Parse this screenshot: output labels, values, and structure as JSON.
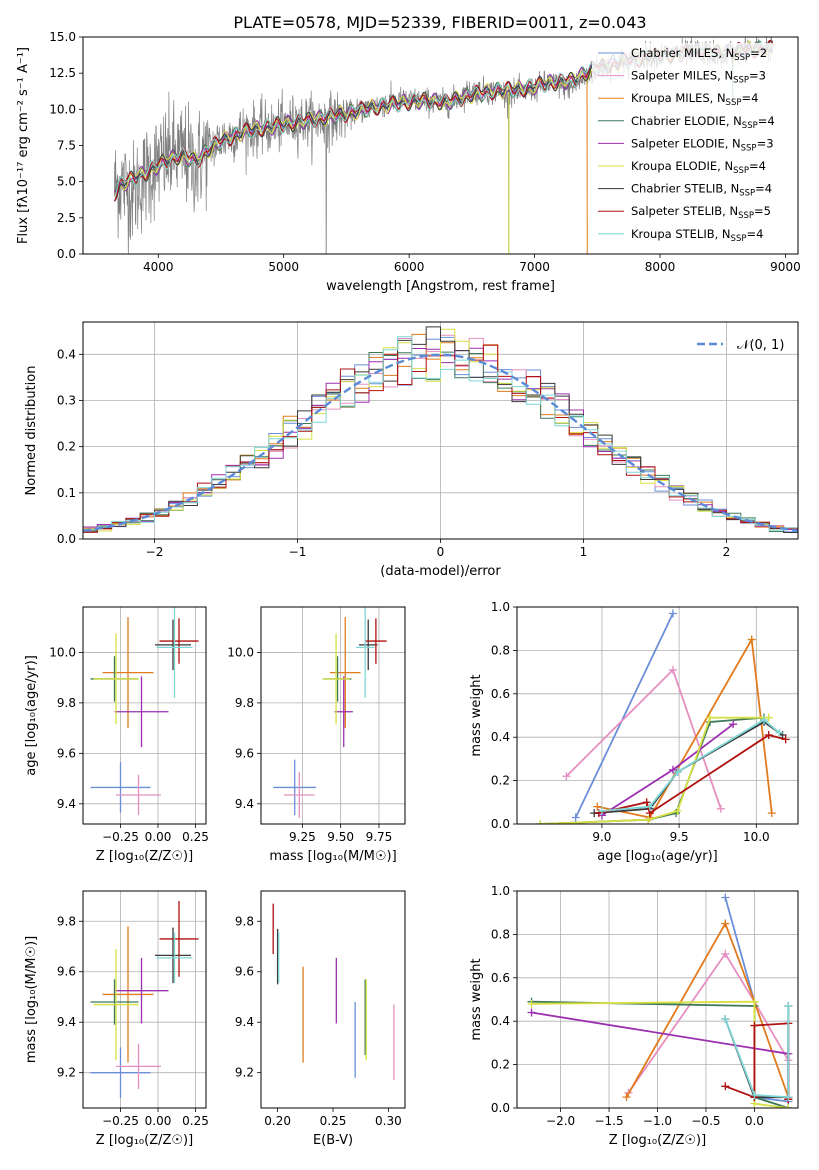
{
  "figure_title": "PLATE=0578, MJD=52339, FIBERID=0011, z=0.043",
  "colors": {
    "Chabrier MILES": "#6a8fd8",
    "Salpeter MILES": "#e58fc0",
    "Kroupa MILES": "#e07b1e",
    "Chabrier ELODIE": "#3e7a5a",
    "Salpeter ELODIE": "#9b2fb0",
    "Kroupa ELODIE": "#d7e043",
    "Chabrier STELIB": "#3a3a3a",
    "Salpeter STELIB": "#b01010",
    "Kroupa STELIB": "#7fd6d6",
    "data": "#808080",
    "normal": "#5b8bd6"
  },
  "chart_data": [
    {
      "id": "spectrum",
      "type": "line",
      "xlabel": "wavelength [Angstrom, rest frame]",
      "ylabel": "Flux [fλ10⁻¹⁷ erg cm⁻² s⁻¹ A⁻¹]",
      "xlim": [
        3400,
        9100
      ],
      "ylim": [
        0,
        15
      ],
      "xticks": [
        4000,
        5000,
        6000,
        7000,
        8000,
        9000
      ],
      "yticks": [
        0.0,
        2.5,
        5.0,
        7.5,
        10.0,
        12.5,
        15.0
      ],
      "grid": false,
      "legend_position": "right",
      "legend": [
        {
          "label": "Chabrier MILES, N",
          "sub": "SSP",
          "eq": "=2",
          "color_key": "Chabrier MILES"
        },
        {
          "label": "Salpeter MILES, N",
          "sub": "SSP",
          "eq": "=3",
          "color_key": "Salpeter MILES"
        },
        {
          "label": "Kroupa MILES, N",
          "sub": "SSP",
          "eq": "=4",
          "color_key": "Kroupa MILES"
        },
        {
          "label": "Chabrier ELODIE, N",
          "sub": "SSP",
          "eq": "=4",
          "color_key": "Chabrier ELODIE"
        },
        {
          "label": "Salpeter ELODIE, N",
          "sub": "SSP",
          "eq": "=3",
          "color_key": "Salpeter ELODIE"
        },
        {
          "label": "Kroupa ELODIE, N",
          "sub": "SSP",
          "eq": "=4",
          "color_key": "Kroupa ELODIE"
        },
        {
          "label": "Chabrier STELIB, N",
          "sub": "SSP",
          "eq": "=4",
          "color_key": "Chabrier STELIB"
        },
        {
          "label": "Salpeter STELIB, N",
          "sub": "SSP",
          "eq": "=5",
          "color_key": "Salpeter STELIB"
        },
        {
          "label": "Kroupa STELIB, N",
          "sub": "SSP",
          "eq": "=4",
          "color_key": "Kroupa STELIB"
        }
      ],
      "data_spectrum": {
        "x": [
          3650,
          3700,
          3800,
          3900,
          4000,
          4100,
          4200,
          4300,
          4400,
          4500,
          4700,
          4900,
          5100,
          5300,
          5500,
          5700,
          5900,
          6100,
          6300,
          6500,
          6700,
          6900,
          7100,
          7300,
          7500,
          7700,
          7900,
          8100,
          8300,
          8500,
          8700,
          8900
        ],
        "y": [
          4.6,
          4.9,
          4.2,
          5.4,
          6.3,
          6.8,
          6.9,
          6.2,
          7.3,
          7.9,
          8.6,
          8.7,
          9.2,
          9.2,
          9.6,
          10.2,
          10.6,
          10.6,
          10.4,
          11.3,
          11.2,
          11.1,
          11.8,
          11.5,
          12.8,
          13.3,
          13.7,
          13.8,
          14.0,
          13.7,
          14.2,
          14.3
        ]
      },
      "model_spectrum": {
        "x": [
          3650,
          3700,
          3800,
          3900,
          4000,
          4100,
          4200,
          4300,
          4400,
          4500,
          4700,
          4900,
          5100,
          5300,
          5500,
          5700,
          5900,
          6100,
          6300,
          6500,
          6700,
          6900,
          7100,
          7300,
          7500,
          7700,
          7900,
          8100,
          8300,
          8500,
          8700,
          8900
        ],
        "y": [
          4.2,
          4.8,
          5.2,
          5.6,
          6.1,
          6.6,
          6.8,
          6.4,
          7.2,
          7.8,
          8.5,
          8.8,
          9.1,
          9.4,
          9.7,
          10.1,
          10.4,
          10.6,
          10.5,
          11.0,
          11.3,
          11.4,
          11.8,
          12.0,
          12.9,
          13.3,
          13.6,
          13.8,
          14.0,
          13.9,
          14.1,
          14.2
        ]
      }
    },
    {
      "id": "residuals",
      "type": "line",
      "xlabel": "(data-model)/error",
      "ylabel": "Normed distribution",
      "xlim": [
        -2.5,
        2.5
      ],
      "ylim": [
        0,
        0.47
      ],
      "xticks": [
        -2,
        -1,
        0,
        1,
        2
      ],
      "yticks": [
        0.0,
        0.1,
        0.2,
        0.3,
        0.4
      ],
      "grid": true,
      "legend_position": "top-right",
      "legend": [
        {
          "label": "𝒩(0, 1)"
        }
      ],
      "histogram_bin_width": 0.1,
      "reference_curve": "standard normal N(0,1)"
    },
    {
      "id": "age_vs_Z",
      "type": "scatter",
      "xlabel": "Z [log₁₀(Z/Z☉)]",
      "ylabel": "age  [log₁₀(age/yr)]",
      "xlim": [
        -0.5,
        0.32
      ],
      "ylim": [
        9.32,
        10.18
      ],
      "xticks": [
        -0.25,
        0.0,
        0.25
      ],
      "yticks": [
        9.4,
        9.6,
        9.8,
        10.0
      ],
      "grid": true,
      "points": [
        {
          "model": "Chabrier MILES",
          "x": -0.25,
          "y": 9.465,
          "xerr": 0.2,
          "yerr": 0.1
        },
        {
          "model": "Salpeter MILES",
          "x": -0.13,
          "y": 9.435,
          "xerr": 0.15,
          "yerr": 0.08
        },
        {
          "model": "Kroupa MILES",
          "x": -0.2,
          "y": 9.92,
          "xerr": 0.17,
          "yerr": 0.22
        },
        {
          "model": "Chabrier ELODIE",
          "x": -0.29,
          "y": 9.895,
          "xerr": 0.16,
          "yerr": 0.09
        },
        {
          "model": "Salpeter ELODIE",
          "x": -0.11,
          "y": 9.765,
          "xerr": 0.18,
          "yerr": 0.14
        },
        {
          "model": "Kroupa ELODIE",
          "x": -0.28,
          "y": 9.895,
          "xerr": 0.15,
          "yerr": 0.18
        },
        {
          "model": "Chabrier STELIB",
          "x": 0.1,
          "y": 10.03,
          "xerr": 0.12,
          "yerr": 0.1
        },
        {
          "model": "Salpeter STELIB",
          "x": 0.14,
          "y": 10.045,
          "xerr": 0.13,
          "yerr": 0.09
        },
        {
          "model": "Kroupa STELIB",
          "x": 0.11,
          "y": 10.02,
          "xerr": 0.12,
          "yerr": 0.2
        }
      ]
    },
    {
      "id": "age_vs_mass",
      "type": "scatter",
      "xlabel": "mass [log₁₀(M/M☉)]",
      "ylabel": "",
      "xlim": [
        8.98,
        9.92
      ],
      "ylim": [
        9.32,
        10.18
      ],
      "xticks": [
        9.25,
        9.5,
        9.75
      ],
      "yticks": [
        9.4,
        9.6,
        9.8,
        10.0
      ],
      "grid": true,
      "points": [
        {
          "model": "Chabrier MILES",
          "x": 9.2,
          "y": 9.465,
          "xerr": 0.14,
          "yerr": 0.11
        },
        {
          "model": "Salpeter MILES",
          "x": 9.23,
          "y": 9.435,
          "xerr": 0.1,
          "yerr": 0.09
        },
        {
          "model": "Kroupa MILES",
          "x": 9.53,
          "y": 9.92,
          "xerr": 0.1,
          "yerr": 0.22
        },
        {
          "model": "Chabrier ELODIE",
          "x": 9.48,
          "y": 9.895,
          "xerr": 0.09,
          "yerr": 0.09
        },
        {
          "model": "Salpeter ELODIE",
          "x": 9.52,
          "y": 9.765,
          "xerr": 0.06,
          "yerr": 0.14
        },
        {
          "model": "Kroupa ELODIE",
          "x": 9.47,
          "y": 9.895,
          "xerr": 0.09,
          "yerr": 0.18
        },
        {
          "model": "Chabrier STELIB",
          "x": 9.68,
          "y": 10.03,
          "xerr": 0.06,
          "yerr": 0.1
        },
        {
          "model": "Salpeter STELIB",
          "x": 9.73,
          "y": 10.045,
          "xerr": 0.07,
          "yerr": 0.09
        },
        {
          "model": "Kroupa STELIB",
          "x": 9.66,
          "y": 10.02,
          "xerr": 0.06,
          "yerr": 0.2
        }
      ]
    },
    {
      "id": "weight_vs_age",
      "type": "line",
      "xlabel": "age  [log₁₀(age/yr)]",
      "ylabel": "mass weight",
      "xlim": [
        8.45,
        10.27
      ],
      "ylim": [
        0,
        1.0
      ],
      "xticks": [
        9.0,
        9.5,
        10.0
      ],
      "yticks": [
        0.0,
        0.2,
        0.4,
        0.6,
        0.8,
        1.0
      ],
      "grid": true,
      "series": [
        {
          "model": "Chabrier MILES",
          "x": [
            8.83,
            9.46
          ],
          "y": [
            0.03,
            0.97
          ]
        },
        {
          "model": "Salpeter MILES",
          "x": [
            8.77,
            9.46,
            9.77
          ],
          "y": [
            0.22,
            0.71,
            0.07
          ]
        },
        {
          "model": "Kroupa MILES",
          "x": [
            8.97,
            9.31,
            9.97,
            10.1
          ],
          "y": [
            0.08,
            0.03,
            0.85,
            0.05
          ]
        },
        {
          "model": "Chabrier ELODIE",
          "x": [
            8.6,
            9.3,
            9.48,
            9.7,
            10.05
          ],
          "y": [
            0.0,
            0.02,
            0.05,
            0.47,
            0.49
          ]
        },
        {
          "model": "Salpeter ELODIE",
          "x": [
            9.0,
            9.46,
            9.85
          ],
          "y": [
            0.04,
            0.25,
            0.46
          ]
        },
        {
          "model": "Kroupa ELODIE",
          "x": [
            8.6,
            9.3,
            9.49,
            9.7,
            10.08
          ],
          "y": [
            0.0,
            0.02,
            0.06,
            0.49,
            0.49
          ]
        },
        {
          "model": "Chabrier STELIB",
          "x": [
            8.95,
            9.31,
            9.49,
            10.05,
            10.17
          ],
          "y": [
            0.05,
            0.07,
            0.24,
            0.47,
            0.41
          ]
        },
        {
          "model": "Salpeter STELIB",
          "x": [
            8.98,
            9.29,
            9.31,
            10.08,
            10.19
          ],
          "y": [
            0.05,
            0.1,
            0.05,
            0.41,
            0.39
          ]
        },
        {
          "model": "Kroupa STELIB",
          "x": [
            9.0,
            9.31,
            9.49,
            10.05,
            10.15
          ],
          "y": [
            0.06,
            0.08,
            0.24,
            0.48,
            0.42
          ]
        }
      ]
    },
    {
      "id": "mass_vs_Z",
      "type": "scatter",
      "xlabel": "Z [log₁₀(Z/Z☉)]",
      "ylabel": "mass [log₁₀(M/M☉)]",
      "xlim": [
        -0.5,
        0.32
      ],
      "ylim": [
        9.06,
        9.92
      ],
      "xticks": [
        -0.25,
        0.0,
        0.25
      ],
      "yticks": [
        9.2,
        9.4,
        9.6,
        9.8
      ],
      "grid": true,
      "points": [
        {
          "model": "Chabrier MILES",
          "x": -0.25,
          "y": 9.2,
          "xerr": 0.2,
          "yerr": 0.1
        },
        {
          "model": "Salpeter MILES",
          "x": -0.13,
          "y": 9.225,
          "xerr": 0.15,
          "yerr": 0.09
        },
        {
          "model": "Kroupa MILES",
          "x": -0.2,
          "y": 9.51,
          "xerr": 0.17,
          "yerr": 0.27
        },
        {
          "model": "Chabrier ELODIE",
          "x": -0.29,
          "y": 9.48,
          "xerr": 0.16,
          "yerr": 0.09
        },
        {
          "model": "Salpeter ELODIE",
          "x": -0.11,
          "y": 9.525,
          "xerr": 0.18,
          "yerr": 0.13
        },
        {
          "model": "Kroupa ELODIE",
          "x": -0.28,
          "y": 9.47,
          "xerr": 0.15,
          "yerr": 0.22
        },
        {
          "model": "Chabrier STELIB",
          "x": 0.1,
          "y": 9.665,
          "xerr": 0.12,
          "yerr": 0.11
        },
        {
          "model": "Salpeter STELIB",
          "x": 0.14,
          "y": 9.73,
          "xerr": 0.13,
          "yerr": 0.15
        },
        {
          "model": "Kroupa STELIB",
          "x": 0.11,
          "y": 9.655,
          "xerr": 0.12,
          "yerr": 0.1
        }
      ]
    },
    {
      "id": "mass_vs_EBV",
      "type": "scatter",
      "xlabel": "E(B-V)",
      "ylabel": "",
      "xlim": [
        0.185,
        0.315
      ],
      "ylim": [
        9.06,
        9.92
      ],
      "xticks": [
        0.2,
        0.25,
        0.3
      ],
      "yticks": [
        9.2,
        9.4,
        9.6,
        9.8
      ],
      "grid": false,
      "points": [
        {
          "model": "Chabrier MILES",
          "x": 0.27,
          "y": 9.33,
          "xerr": 0.0,
          "yerr": 0.15
        },
        {
          "model": "Salpeter MILES",
          "x": 0.305,
          "y": 9.32,
          "xerr": 0.0,
          "yerr": 0.15
        },
        {
          "model": "Kroupa MILES",
          "x": 0.223,
          "y": 9.43,
          "xerr": 0.0,
          "yerr": 0.19
        },
        {
          "model": "Chabrier ELODIE",
          "x": 0.279,
          "y": 9.42,
          "xerr": 0.0,
          "yerr": 0.15
        },
        {
          "model": "Salpeter ELODIE",
          "x": 0.253,
          "y": 9.525,
          "xerr": 0.0,
          "yerr": 0.13
        },
        {
          "model": "Kroupa ELODIE",
          "x": 0.28,
          "y": 9.41,
          "xerr": 0.0,
          "yerr": 0.16
        },
        {
          "model": "Chabrier STELIB",
          "x": 0.2,
          "y": 9.66,
          "xerr": 0.0,
          "yerr": 0.11
        },
        {
          "model": "Salpeter STELIB",
          "x": 0.196,
          "y": 9.77,
          "xerr": 0.0,
          "yerr": 0.1
        },
        {
          "model": "Kroupa STELIB",
          "x": 0.201,
          "y": 9.655,
          "xerr": 0.0,
          "yerr": 0.1
        }
      ]
    },
    {
      "id": "weight_vs_Z",
      "type": "line",
      "xlabel": "Z [log₁₀(Z/Z☉)]",
      "ylabel": "mass weight",
      "xlim": [
        -2.45,
        0.45
      ],
      "ylim": [
        0,
        1.0
      ],
      "xticks": [
        -2.0,
        -1.5,
        -1.0,
        -0.5,
        0.0
      ],
      "yticks": [
        0.0,
        0.2,
        0.4,
        0.6,
        0.8,
        1.0
      ],
      "grid": true,
      "series": [
        {
          "model": "Chabrier MILES",
          "x": [
            -0.3,
            0.0,
            0.0,
            0.35
          ],
          "y": [
            0.97,
            0.49,
            0.05,
            0.03
          ]
        },
        {
          "model": "Salpeter MILES",
          "x": [
            -1.3,
            -0.3,
            0.0,
            0.35
          ],
          "y": [
            0.07,
            0.71,
            0.49,
            0.22
          ]
        },
        {
          "model": "Kroupa MILES",
          "x": [
            -1.32,
            -0.3,
            0.0,
            0.35
          ],
          "y": [
            0.05,
            0.85,
            0.49,
            0.05
          ]
        },
        {
          "model": "Chabrier ELODIE",
          "x": [
            -2.3,
            0.0,
            0.0,
            0.35
          ],
          "y": [
            0.49,
            0.47,
            0.05,
            0.0
          ]
        },
        {
          "model": "Salpeter ELODIE",
          "x": [
            -2.3,
            0.35,
            0.35
          ],
          "y": [
            0.44,
            0.25,
            0.04
          ]
        },
        {
          "model": "Kroupa ELODIE",
          "x": [
            -2.3,
            0.0,
            0.0,
            0.35
          ],
          "y": [
            0.48,
            0.49,
            0.02,
            0.0
          ]
        },
        {
          "model": "Chabrier STELIB",
          "x": [
            -0.3,
            0.0,
            0.35,
            0.35
          ],
          "y": [
            0.41,
            0.05,
            0.05,
            0.47
          ]
        },
        {
          "model": "Salpeter STELIB",
          "x": [
            -0.3,
            0.0,
            0.0,
            0.35,
            0.35
          ],
          "y": [
            0.1,
            0.05,
            0.38,
            0.39,
            0.04
          ]
        },
        {
          "model": "Kroupa STELIB",
          "x": [
            -0.3,
            0.0,
            0.35,
            0.35
          ],
          "y": [
            0.41,
            0.06,
            0.05,
            0.47
          ]
        }
      ]
    }
  ]
}
